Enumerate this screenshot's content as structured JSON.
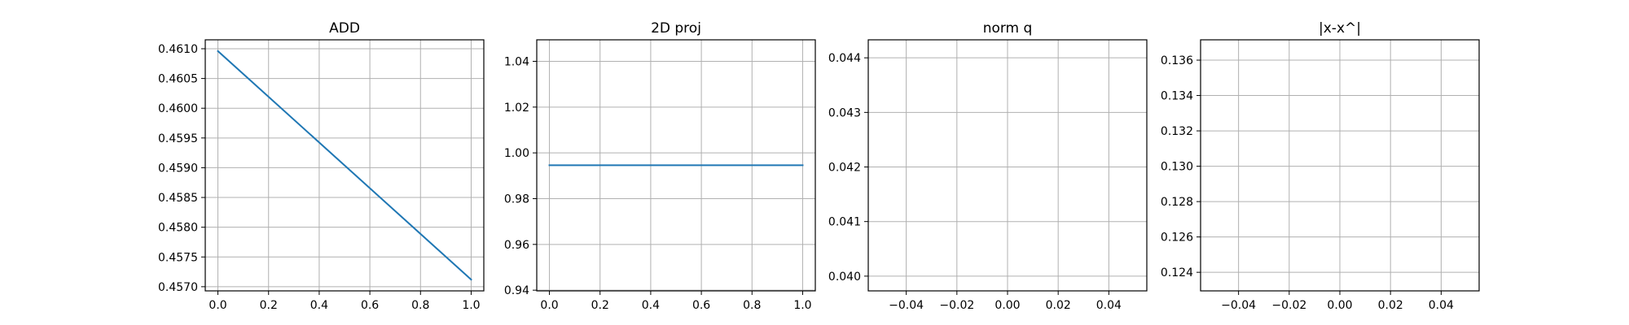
{
  "figure": {
    "background": "#ffffff",
    "grid_color": "#b0b0b0",
    "line_color": "#1f77b4",
    "spine_color": "#000000"
  },
  "chart_data": [
    {
      "type": "line",
      "title": "ADD",
      "xlabel": "",
      "ylabel": "",
      "grid": true,
      "xlim": [
        -0.05,
        1.05
      ],
      "ylim": [
        0.45693,
        0.46115
      ],
      "xticks": [
        0.0,
        0.2,
        0.4,
        0.6,
        0.8,
        1.0
      ],
      "xtick_labels": [
        "0.0",
        "0.2",
        "0.4",
        "0.6",
        "0.8",
        "1.0"
      ],
      "yticks": [
        0.457,
        0.4575,
        0.458,
        0.4585,
        0.459,
        0.4595,
        0.46,
        0.4605,
        0.461
      ],
      "ytick_labels": [
        "0.4570",
        "0.4575",
        "0.4580",
        "0.4585",
        "0.4590",
        "0.4595",
        "0.4600",
        "0.4605",
        "0.4610"
      ],
      "series": [
        {
          "x": [
            0.0,
            1.0
          ],
          "y": [
            0.46096,
            0.45712
          ],
          "color": "#1f77b4"
        }
      ]
    },
    {
      "type": "line",
      "title": "2D proj",
      "xlabel": "",
      "ylabel": "",
      "grid": true,
      "xlim": [
        -0.05,
        1.05
      ],
      "ylim": [
        0.9397,
        1.0494
      ],
      "xticks": [
        0.0,
        0.2,
        0.4,
        0.6,
        0.8,
        1.0
      ],
      "xtick_labels": [
        "0.0",
        "0.2",
        "0.4",
        "0.6",
        "0.8",
        "1.0"
      ],
      "yticks": [
        0.94,
        0.96,
        0.98,
        1.0,
        1.02,
        1.04
      ],
      "ytick_labels": [
        "0.94",
        "0.96",
        "0.98",
        "1.00",
        "1.02",
        "1.04"
      ],
      "series": [
        {
          "x": [
            0.0,
            1.0
          ],
          "y": [
            0.9946,
            0.9946
          ],
          "color": "#1f77b4"
        }
      ]
    },
    {
      "type": "line",
      "title": "norm q",
      "xlabel": "",
      "ylabel": "",
      "grid": true,
      "xlim": [
        -0.055,
        0.055
      ],
      "ylim": [
        0.03973,
        0.04433
      ],
      "xticks": [
        -0.04,
        -0.02,
        0.0,
        0.02,
        0.04
      ],
      "xtick_labels": [
        "−0.04",
        "−0.02",
        "0.00",
        "0.02",
        "0.04"
      ],
      "yticks": [
        0.04,
        0.041,
        0.042,
        0.043,
        0.044
      ],
      "ytick_labels": [
        "0.040",
        "0.041",
        "0.042",
        "0.043",
        "0.044"
      ],
      "series": []
    },
    {
      "type": "line",
      "title": "|x-x^|",
      "xlabel": "",
      "ylabel": "",
      "grid": true,
      "xlim": [
        -0.055,
        0.055
      ],
      "ylim": [
        0.12295,
        0.13715
      ],
      "xticks": [
        -0.04,
        -0.02,
        0.0,
        0.02,
        0.04
      ],
      "xtick_labels": [
        "−0.04",
        "−0.02",
        "0.00",
        "0.02",
        "0.04"
      ],
      "yticks": [
        0.124,
        0.126,
        0.128,
        0.13,
        0.132,
        0.134,
        0.136
      ],
      "ytick_labels": [
        "0.124",
        "0.126",
        "0.128",
        "0.130",
        "0.132",
        "0.134",
        "0.136"
      ],
      "series": []
    }
  ]
}
